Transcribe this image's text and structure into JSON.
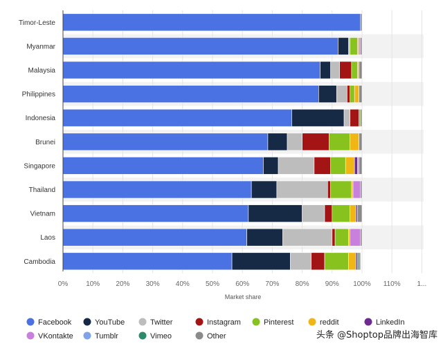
{
  "chart_data": {
    "type": "bar",
    "orientation": "horizontal",
    "stacked": true,
    "categories": [
      "Timor-Leste",
      "Myanmar",
      "Malaysia",
      "Philippines",
      "Indonesia",
      "Brunei",
      "Singapore",
      "Thailand",
      "Vietnam",
      "Laos",
      "Cambodia"
    ],
    "series": [
      {
        "name": "Facebook",
        "color": "#4a72e3",
        "values": [
          99.5,
          92,
          86,
          85.5,
          76.5,
          68.5,
          67,
          63,
          62,
          61.5,
          56.5
        ]
      },
      {
        "name": "YouTube",
        "color": "#172a45",
        "values": [
          0,
          3.5,
          3.5,
          6,
          17.5,
          6.5,
          5,
          8.5,
          18,
          12,
          19.5
        ]
      },
      {
        "name": "Twitter",
        "color": "#bdbdbd",
        "values": [
          0,
          0.5,
          3,
          3.5,
          2,
          5,
          12,
          17,
          7.5,
          16.5,
          7
        ]
      },
      {
        "name": "Instagram",
        "color": "#a31515",
        "values": [
          0,
          0,
          4,
          1,
          3,
          9,
          5.5,
          1,
          2.5,
          1,
          4.5
        ]
      },
      {
        "name": "Pinterest",
        "color": "#88c21e",
        "values": [
          0,
          2.5,
          2,
          1.5,
          0.5,
          7,
          5,
          7,
          6,
          4.5,
          8
        ]
      },
      {
        "name": "reddit",
        "color": "#f0b616",
        "values": [
          0,
          0.5,
          0.5,
          1.5,
          0,
          3,
          3,
          0.5,
          2,
          0.5,
          2.5
        ]
      },
      {
        "name": "LinkedIn",
        "color": "#6e2a8e",
        "values": [
          0,
          0,
          0,
          0,
          0,
          0,
          1,
          0,
          0.5,
          0,
          0.5
        ]
      },
      {
        "name": "VKontakte",
        "color": "#c97fdc",
        "values": [
          0,
          0.5,
          0,
          0,
          0,
          0,
          0.5,
          2.5,
          0,
          3.5,
          0
        ]
      },
      {
        "name": "Tumblr",
        "color": "#7fa4e8",
        "values": [
          0,
          0,
          0,
          0,
          0,
          0,
          0,
          0,
          0,
          0,
          0
        ]
      },
      {
        "name": "Vimeo",
        "color": "#2e8b6a",
        "values": [
          0,
          0,
          0,
          0,
          0,
          0,
          0,
          0,
          0,
          0,
          0.5
        ]
      },
      {
        "name": "Other",
        "color": "#8a8a8a",
        "values": [
          0.5,
          0.5,
          1,
          1,
          0.5,
          1,
          1,
          0.5,
          1.5,
          0.5,
          0.5
        ]
      }
    ],
    "xlabel": "Market share",
    "ylabel": "",
    "xlim": [
      0,
      120
    ],
    "x_ticks": [
      "0%",
      "10%",
      "20%",
      "30%",
      "40%",
      "50%",
      "60%",
      "70%",
      "80%",
      "90%",
      "100%",
      "110%",
      "1..."
    ],
    "grid": "alternating row bands",
    "legend_position": "bottom"
  },
  "watermark": "头条 @Shoptop品牌出海智库"
}
